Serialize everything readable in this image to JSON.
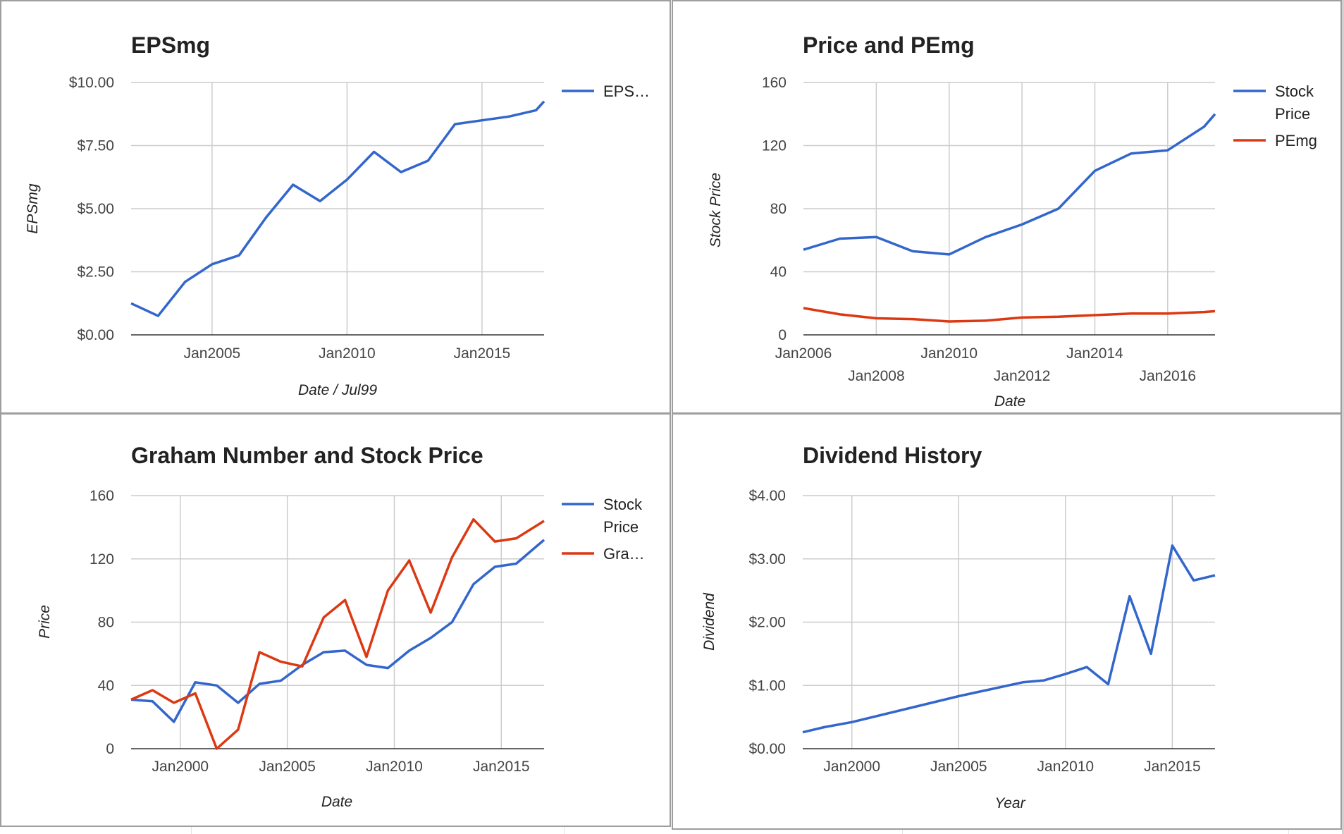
{
  "colors": {
    "blue": "#3366cc",
    "red": "#dc3912"
  },
  "chart_data": [
    {
      "type": "line",
      "title": "EPSmg",
      "xlabel": "Date / Jul99",
      "ylabel": "EPSmg",
      "xlim": [
        2002.0,
        2017.3
      ],
      "ylim": [
        0,
        10
      ],
      "xticks": [
        {
          "v": 2005,
          "label": "Jan2005"
        },
        {
          "v": 2010,
          "label": "Jan2010"
        },
        {
          "v": 2015,
          "label": "Jan2015"
        }
      ],
      "yticks": [
        {
          "v": 0,
          "label": "$0.00"
        },
        {
          "v": 2.5,
          "label": "$2.50"
        },
        {
          "v": 5,
          "label": "$5.00"
        },
        {
          "v": 7.5,
          "label": "$7.50"
        },
        {
          "v": 10,
          "label": "$10.00"
        }
      ],
      "series": [
        {
          "name": "EPS…",
          "color": "#3366cc",
          "x": [
            2002.0,
            2003.0,
            2004.0,
            2005.0,
            2006.0,
            2007.0,
            2008.0,
            2009.0,
            2010.0,
            2011.0,
            2012.0,
            2013.0,
            2014.0,
            2015.0,
            2016.0,
            2017.0,
            2017.3
          ],
          "y": [
            1.25,
            0.75,
            2.1,
            2.8,
            3.15,
            4.65,
            5.95,
            5.3,
            6.15,
            7.25,
            6.45,
            6.9,
            8.35,
            8.5,
            8.65,
            8.9,
            9.25
          ]
        }
      ],
      "legend": [
        {
          "label": "EPS…",
          "color": "#3366cc"
        }
      ],
      "grid": true,
      "legend_position": "right"
    },
    {
      "type": "line",
      "title": "Price and PEmg",
      "xlabel": "Date",
      "ylabel": "Stock Price",
      "xlim": [
        2006.0,
        2017.3
      ],
      "ylim": [
        0,
        160
      ],
      "xticks": [
        {
          "v": 2006,
          "label": "Jan2006",
          "row": 0
        },
        {
          "v": 2008,
          "label": "Jan2008",
          "row": 1
        },
        {
          "v": 2010,
          "label": "Jan2010",
          "row": 0
        },
        {
          "v": 2012,
          "label": "Jan2012",
          "row": 1
        },
        {
          "v": 2014,
          "label": "Jan2014",
          "row": 0
        },
        {
          "v": 2016,
          "label": "Jan2016",
          "row": 1
        }
      ],
      "yticks": [
        {
          "v": 0,
          "label": "0"
        },
        {
          "v": 40,
          "label": "40"
        },
        {
          "v": 80,
          "label": "80"
        },
        {
          "v": 120,
          "label": "120"
        },
        {
          "v": 160,
          "label": "160"
        }
      ],
      "series": [
        {
          "name": "Stock Price",
          "color": "#3366cc",
          "x": [
            2006.0,
            2007.0,
            2008.0,
            2009.0,
            2010.0,
            2011.0,
            2012.0,
            2013.0,
            2014.0,
            2015.0,
            2016.0,
            2017.0,
            2017.3
          ],
          "y": [
            54,
            61,
            62,
            53,
            51,
            62,
            70,
            80,
            104,
            115,
            117,
            132,
            140
          ]
        },
        {
          "name": "PEmg",
          "color": "#dc3912",
          "x": [
            2006.0,
            2007.0,
            2008.0,
            2009.0,
            2010.0,
            2011.0,
            2012.0,
            2013.0,
            2014.0,
            2015.0,
            2016.0,
            2017.0,
            2017.3
          ],
          "y": [
            17,
            13,
            10.5,
            10,
            8.5,
            9,
            11,
            11.5,
            12.5,
            13.5,
            13.5,
            14.5,
            15
          ]
        }
      ],
      "legend": [
        {
          "label": "Stock",
          "label2": "Price",
          "color": "#3366cc"
        },
        {
          "label": "PEmg",
          "color": "#dc3912"
        }
      ],
      "grid": true,
      "legend_position": "right"
    },
    {
      "type": "line",
      "title": "Graham Number and Stock Price",
      "xlabel": "Date",
      "ylabel": "Price",
      "xlim": [
        1997.7,
        2017.0
      ],
      "ylim": [
        0,
        160
      ],
      "xticks": [
        {
          "v": 2000,
          "label": "Jan2000"
        },
        {
          "v": 2005,
          "label": "Jan2005"
        },
        {
          "v": 2010,
          "label": "Jan2010"
        },
        {
          "v": 2015,
          "label": "Jan2015"
        }
      ],
      "yticks": [
        {
          "v": 0,
          "label": "0"
        },
        {
          "v": 40,
          "label": "40"
        },
        {
          "v": 80,
          "label": "80"
        },
        {
          "v": 120,
          "label": "120"
        },
        {
          "v": 160,
          "label": "160"
        }
      ],
      "series": [
        {
          "name": "Stock Price",
          "color": "#3366cc",
          "x": [
            1997.7,
            1998.7,
            1999.7,
            2000.7,
            2001.7,
            2002.7,
            2003.7,
            2004.7,
            2005.7,
            2006.7,
            2007.7,
            2008.7,
            2009.7,
            2010.7,
            2011.7,
            2012.7,
            2013.7,
            2014.7,
            2015.7,
            2017.0
          ],
          "y": [
            31,
            30,
            17,
            42,
            40,
            29,
            41,
            43,
            53,
            61,
            62,
            53,
            51,
            62,
            70,
            80,
            104,
            115,
            117,
            132
          ]
        },
        {
          "name": "Gra…",
          "color": "#dc3912",
          "x": [
            1997.7,
            1998.7,
            1999.7,
            2000.7,
            2001.7,
            2002.7,
            2003.7,
            2004.7,
            2005.7,
            2006.7,
            2007.7,
            2008.7,
            2009.7,
            2010.7,
            2011.7,
            2012.7,
            2013.7,
            2014.7,
            2015.7,
            2017.0
          ],
          "y": [
            31,
            37,
            29,
            35,
            0,
            12,
            61,
            55,
            52,
            83,
            94,
            58,
            100,
            119,
            86,
            121,
            145,
            131,
            133,
            144
          ]
        }
      ],
      "legend": [
        {
          "label": "Stock",
          "label2": "Price",
          "color": "#3366cc"
        },
        {
          "label": "Gra…",
          "color": "#dc3912"
        }
      ],
      "grid": true,
      "legend_position": "right"
    },
    {
      "type": "line",
      "title": "Dividend History",
      "xlabel": "Year",
      "ylabel": "Dividend",
      "xlim": [
        1997.7,
        2017.0
      ],
      "ylim": [
        0,
        4
      ],
      "xticks": [
        {
          "v": 2000,
          "label": "Jan2000"
        },
        {
          "v": 2005,
          "label": "Jan2005"
        },
        {
          "v": 2010,
          "label": "Jan2010"
        },
        {
          "v": 2015,
          "label": "Jan2015"
        }
      ],
      "yticks": [
        {
          "v": 0,
          "label": "$0.00"
        },
        {
          "v": 1,
          "label": "$1.00"
        },
        {
          "v": 2,
          "label": "$2.00"
        },
        {
          "v": 3,
          "label": "$3.00"
        },
        {
          "v": 4,
          "label": "$4.00"
        }
      ],
      "series": [
        {
          "name": "Dividend",
          "color": "#3366cc",
          "x": [
            1997.7,
            1998.7,
            2000.0,
            2005.0,
            2008.0,
            2009.0,
            2010.0,
            2011.0,
            2012.0,
            2013.0,
            2014.0,
            2015.0,
            2016.0,
            2017.0
          ],
          "y": [
            0.26,
            0.34,
            0.42,
            0.83,
            1.05,
            1.08,
            1.18,
            1.29,
            1.02,
            2.41,
            1.5,
            3.21,
            2.66,
            2.74
          ]
        }
      ],
      "legend": [],
      "grid": true,
      "legend_position": "none"
    }
  ]
}
